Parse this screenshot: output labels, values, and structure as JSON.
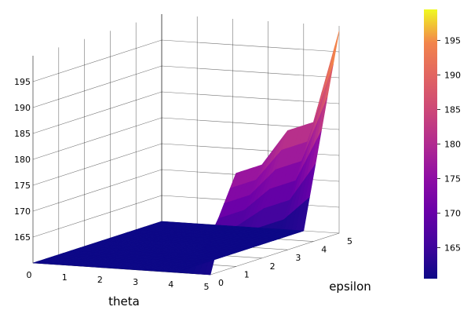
{
  "chart_data": {
    "type": "surface",
    "title": "",
    "xlabel": "theta",
    "ylabel": "epsilon",
    "zlabel": "",
    "x": [
      0,
      1,
      2,
      3,
      4,
      5
    ],
    "y": [
      0,
      1,
      2,
      3,
      4,
      5
    ],
    "z_grid": [
      [
        160,
        160,
        160,
        160,
        160,
        160
      ],
      [
        160,
        160,
        160,
        160,
        160,
        160
      ],
      [
        160,
        160,
        160,
        160,
        160,
        160
      ],
      [
        160,
        160,
        160,
        160,
        160,
        160
      ],
      [
        160,
        160,
        160,
        160,
        160,
        160
      ],
      [
        160,
        178,
        178,
        183,
        183,
        199
      ]
    ],
    "x_ticks": [
      "0",
      "1",
      "2",
      "3",
      "4",
      "5"
    ],
    "y_ticks": [
      "0",
      "1",
      "2",
      "3",
      "4",
      "5"
    ],
    "z_ticks": [
      "165",
      "170",
      "175",
      "180",
      "185",
      "190",
      "195"
    ],
    "zlim": [
      160,
      200
    ],
    "grid": true,
    "colorscale": "plasma",
    "colorbar": {
      "ticks": [
        "165",
        "170",
        "175",
        "180",
        "185",
        "190",
        "195"
      ],
      "range": [
        160.5,
        199.5
      ]
    }
  }
}
